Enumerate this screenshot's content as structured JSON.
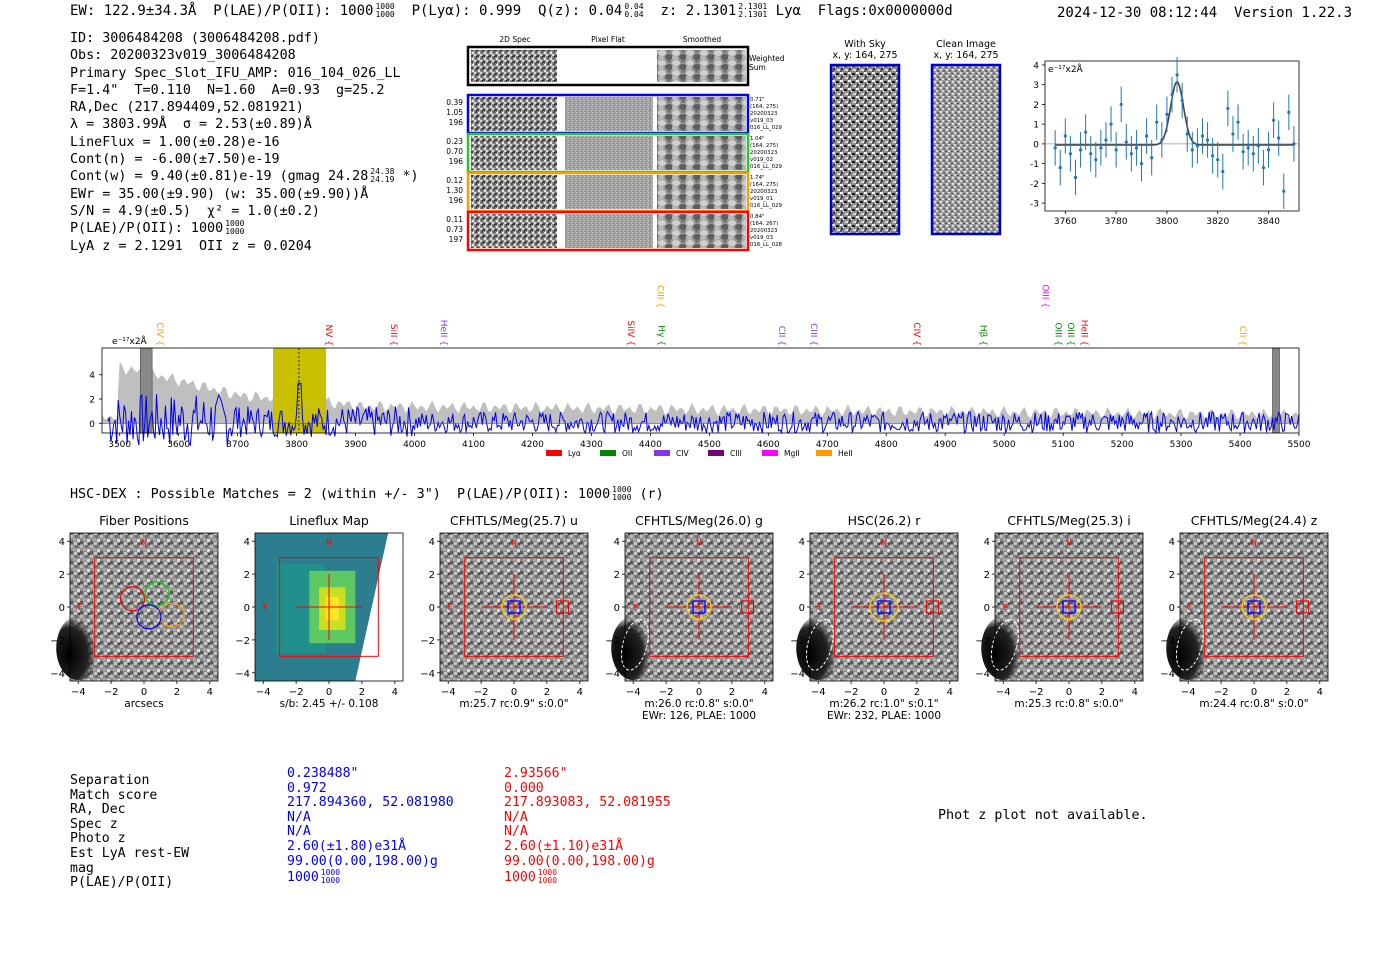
{
  "header": {
    "ew": "EW: 122.9±34.3Å",
    "plae_label": "P(LAE)/P(OII): 1000",
    "plae_frac_top": "1000",
    "plae_frac_bot": "1000",
    "plya": "P(Lyα): 0.999",
    "qz_label": "Q(z): 0.04",
    "qz_top": "0.04",
    "qz_bot": "0.04",
    "z_label": "z: 2.1301",
    "z_top": "2.1301",
    "z_bot": "2.1301",
    "line": "Lyα",
    "flags": "Flags:0x0000000d",
    "datetime": "2024-12-30 08:12:44",
    "version": "Version 1.22.3"
  },
  "info": {
    "id": "ID: 3006484208 (3006484208.pdf)",
    "obs": "Obs: 20200323v019_3006484208",
    "primary": "Primary Spec_Slot_IFU_AMP: 016_104_026_LL",
    "fit": "F=1.4\"  T=0.110  N=1.60  A=0.93  g=25.2",
    "radec": "RA,Dec (217.894409,52.081921)",
    "lambda": "λ = 3803.99Å  σ = 2.53(±0.89)Å",
    "lineflux": "LineFlux = 1.00(±0.28)e-16",
    "contn": "Cont(n) = -6.00(±7.50)e-19",
    "contw": "Cont(w) = 9.40(±0.81)e-19 (gmag 24.28",
    "contw_top": "24.38",
    "contw_bot": "24.19",
    "contw_end": "*)",
    "ewr": "EWr = 35.00(±9.90) (w: 35.00(±9.90))Å",
    "sn": "S/N = 4.9(±0.5)  χ² = 1.0(±0.2)",
    "plae": "P(LAE)/P(OII): 1000",
    "plae_top": "1000",
    "plae_bot": "1000",
    "lyaz": "LyA z = 2.1291  OII z = 0.0204"
  },
  "cutouts": {
    "col_labels": [
      "2D Spec",
      "Pixel Flat",
      "Smoothed"
    ],
    "weighted_label": "Weighted Sum",
    "rows": [
      {
        "left": [
          "0.39",
          "1.05",
          "196"
        ],
        "right": [
          "0.71\"",
          "(164, 275)",
          "20200323",
          "v019_03",
          "016_LL_029"
        ],
        "color": "#0000ff"
      },
      {
        "left": [
          "0.23",
          "0.70",
          "196"
        ],
        "right": [
          "1.04\"",
          "(164, 275)",
          "20200323",
          "v019_02",
          "016_LL_029"
        ],
        "color": "#22cc22"
      },
      {
        "left": [
          "0.12",
          "1.30",
          "196"
        ],
        "right": [
          "1.74\"",
          "(164, 275)",
          "20200323",
          "v019_01",
          "016_LL_029"
        ],
        "color": "#ff9900"
      },
      {
        "left": [
          "0.11",
          "0.73",
          "197"
        ],
        "right": [
          "0.84\"",
          "(164, 267)",
          "20200323",
          "v019_03",
          "016_LL_028"
        ],
        "color": "#ff0000"
      }
    ],
    "with_sky_title": "With Sky",
    "with_sky_xy": "x, y: 164, 275",
    "clean_title": "Clean Image",
    "clean_xy": "x, y: 164, 275"
  },
  "chart_data": [
    {
      "type": "scatter",
      "title": "",
      "ylabel_note": "e⁻¹⁷x2Å",
      "xlim": [
        3752,
        3852
      ],
      "ylim": [
        -3.4,
        4.2
      ],
      "xticks": [
        3760,
        3780,
        3800,
        3820,
        3840
      ],
      "yticks": [
        -3,
        -2,
        -1,
        0,
        1,
        2,
        3,
        4
      ],
      "x": [
        3756,
        3758,
        3760,
        3762,
        3764,
        3766,
        3768,
        3770,
        3772,
        3774,
        3776,
        3778,
        3780,
        3782,
        3784,
        3786,
        3788,
        3790,
        3792,
        3794,
        3796,
        3798,
        3800,
        3802,
        3804,
        3806,
        3808,
        3810,
        3812,
        3814,
        3816,
        3818,
        3820,
        3822,
        3824,
        3826,
        3828,
        3830,
        3832,
        3834,
        3836,
        3838,
        3840,
        3842,
        3844,
        3846,
        3848,
        3850
      ],
      "y": [
        -0.2,
        -1.2,
        0.4,
        -0.5,
        -1.7,
        -0.3,
        0.6,
        -0.5,
        -0.8,
        -0.2,
        0.2,
        1.0,
        -0.3,
        2.0,
        0.1,
        -0.5,
        -0.2,
        -1.0,
        0.4,
        -0.7,
        1.1,
        0.2,
        1.5,
        2.5,
        3.5,
        2.2,
        0.5,
        -0.3,
        -0.1,
        0.4,
        0.2,
        -0.6,
        -0.8,
        -1.4,
        1.8,
        0.5,
        1.1,
        -0.4,
        -0.2,
        -0.5,
        -0.1,
        -1.2,
        -0.3,
        1.2,
        0.3,
        -2.4,
        1.6,
        0.0
      ],
      "yerr": [
        0.9,
        0.9,
        0.9,
        0.9,
        0.9,
        0.9,
        0.9,
        0.9,
        0.9,
        0.9,
        0.9,
        0.9,
        0.9,
        0.9,
        0.9,
        0.9,
        0.9,
        0.9,
        0.9,
        0.9,
        0.9,
        0.9,
        0.9,
        0.9,
        0.9,
        0.9,
        0.9,
        0.9,
        0.9,
        0.9,
        0.9,
        0.9,
        0.9,
        0.9,
        0.9,
        0.9,
        0.9,
        0.9,
        0.9,
        0.9,
        0.9,
        0.9,
        0.9,
        0.9,
        0.9,
        0.9,
        0.9,
        0.9
      ],
      "fit": {
        "center": 3804,
        "sigma": 2.53,
        "amp": 3.2,
        "baseline": -0.05
      }
    },
    {
      "type": "line",
      "ylabel_note": "e⁻¹⁷x2Å",
      "xlim": [
        3470,
        5500
      ],
      "ylim": [
        -0.8,
        6.2
      ],
      "xticks": [
        3500,
        3600,
        3700,
        3800,
        3900,
        4000,
        4100,
        4200,
        4300,
        4400,
        4500,
        4600,
        4700,
        4800,
        4900,
        5000,
        5100,
        5200,
        5300,
        5400,
        5500
      ],
      "yticks": [
        0,
        2,
        4
      ],
      "highlight_band": [
        3760,
        3850
      ],
      "detection_line": 3804,
      "masked_regions": [
        [
          3535,
          3555
        ],
        [
          5455,
          5467
        ]
      ],
      "line_markers": [
        {
          "label": "CIV",
          "x": 3563,
          "color": "#ff9900"
        },
        {
          "label": "NV",
          "x": 3850,
          "color": "#ff0000"
        },
        {
          "label": "SiII",
          "x": 3960,
          "color": "#ff0000"
        },
        {
          "label": "HeII",
          "x": 4045,
          "color": "#8833ee"
        },
        {
          "label": "SiIV",
          "x": 4362,
          "color": "#ff0000"
        },
        {
          "label": "CIII",
          "x": 4412,
          "color": "#ff9900"
        },
        {
          "label": "Hγ",
          "x": 4414,
          "color": "#008800"
        },
        {
          "label": "CII",
          "x": 4618,
          "color": "#8833ee"
        },
        {
          "label": "CIII",
          "x": 4672,
          "color": "#8833ee"
        },
        {
          "label": "CIV",
          "x": 4847,
          "color": "#ff0000"
        },
        {
          "label": "Hβ",
          "x": 4960,
          "color": "#008800"
        },
        {
          "label": "OIII",
          "x": 5065,
          "color": "#ff00ff"
        },
        {
          "label": "OIII",
          "x": 5087,
          "color": "#008800"
        },
        {
          "label": "OIII",
          "x": 5108,
          "color": "#008800"
        },
        {
          "label": "HeII",
          "x": 5131,
          "color": "#ff0000"
        },
        {
          "label": "CII",
          "x": 5400,
          "color": "#ff9900"
        }
      ],
      "legend": [
        {
          "label": "Lyα",
          "color": "#ff0000"
        },
        {
          "label": "OII",
          "color": "#008800"
        },
        {
          "label": "CIV",
          "color": "#8833ee"
        },
        {
          "label": "CIII",
          "color": "#770077"
        },
        {
          "label": "MgII",
          "color": "#ff00ff"
        },
        {
          "label": "HeII",
          "color": "#ff9900"
        }
      ]
    }
  ],
  "hsc": {
    "line": "HSC-DEX : Possible Matches = 2 (within +/- 3\")  P(LAE)/P(OII): 1000",
    "top": "1000",
    "bot": "1000",
    "suffix": "(r)"
  },
  "panels": [
    {
      "title": "Fiber Positions",
      "caption1": "arcsecs",
      "caption2": ""
    },
    {
      "title": "Lineflux Map",
      "caption1": "s/b: 2.45 +/- 0.108",
      "caption2": ""
    },
    {
      "title": "CFHTLS/Meg(25.7) u",
      "caption1": "m:25.7 rc:0.9\"  s:0.0\"",
      "caption2": ""
    },
    {
      "title": "CFHTLS/Meg(26.0) g",
      "caption1": "m:26.0 rc:0.8\"  s:0.0\"",
      "caption2": "EWr: 126, PLAE: 1000"
    },
    {
      "title": "HSC(26.2) r",
      "caption1": "m:26.2 rc:1.0\"  s:0.1\"",
      "caption2": "EWr: 232, PLAE: 1000"
    },
    {
      "title": "CFHTLS/Meg(25.3) i",
      "caption1": "m:25.3 rc:0.8\"  s:0.0\"",
      "caption2": ""
    },
    {
      "title": "CFHTLS/Meg(24.4) z",
      "caption1": "m:24.4 rc:0.8\"  s:0.0\"",
      "caption2": ""
    }
  ],
  "panel_axes": {
    "ticks": [
      "−4",
      "−2",
      "0",
      "2",
      "4"
    ],
    "north": "N",
    "east": "E"
  },
  "matches": {
    "labels": [
      "Separation",
      "Match score",
      "RA, Dec",
      "Spec z",
      "Photo z",
      "Est LyA rest-EW",
      "mag",
      "P(LAE)/P(OII)"
    ],
    "m1": [
      "0.238488\"",
      "0.972",
      "217.894360, 52.081980",
      "N/A",
      "N/A",
      "2.60(±1.80)e31Å",
      "99.00(0.00,198.00)g",
      "1000"
    ],
    "m2": [
      "2.93566\"",
      "0.000",
      "217.893083, 52.081955",
      "N/A",
      "N/A",
      "2.60(±1.10)e31Å",
      "99.00(0.00,198.00)g",
      "1000"
    ],
    "frac_top": "1000",
    "frac_bot": "1000"
  },
  "phot_z": "Phot z plot not available."
}
